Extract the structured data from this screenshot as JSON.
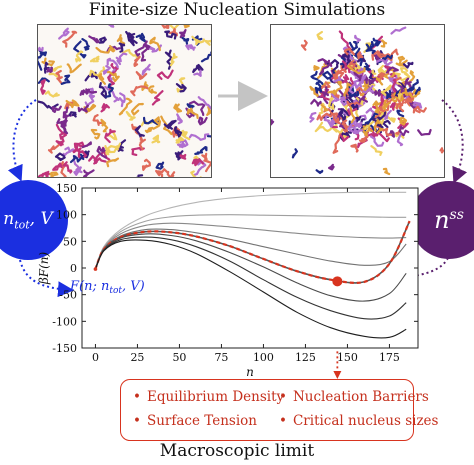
{
  "title": "Finite-size Nucleation Simulations",
  "left_node": {
    "label": "n_{tot}, V",
    "label_main": "n",
    "label_sub": "tot",
    "label_rest": ", V",
    "color": "#1b2fe0"
  },
  "right_node": {
    "label_main": "n",
    "label_sup": "ss",
    "color": "#5a1f6e"
  },
  "curve_label": {
    "prefix": "F(n; n",
    "sub": "tot",
    "suffix": ", V)",
    "color": "#1b2fe0"
  },
  "results": {
    "items": [
      "Equilibrium Density",
      "Nucleation Barriers",
      "Surface Tension",
      "Critical nucleus sizes"
    ],
    "bullet": "•",
    "color": "#d8341f"
  },
  "caption": "Macroscopic limit",
  "chart_data": {
    "type": "line",
    "xlabel": "n",
    "ylabel": "βF(n)",
    "xlim": [
      -8,
      192
    ],
    "ylim": [
      -150,
      150
    ],
    "xticks": [
      0,
      25,
      50,
      75,
      100,
      125,
      150,
      175
    ],
    "yticks": [
      150,
      100,
      50,
      0,
      -50,
      -100,
      -150
    ],
    "grid": false,
    "series": [
      {
        "color": "#b5b5b5",
        "x": [
          0,
          5,
          15,
          30,
          45,
          60,
          80,
          100,
          120,
          140,
          160,
          175,
          185
        ],
        "y": [
          -2,
          40,
          72,
          98,
          113,
          123,
          131,
          136,
          139,
          141,
          142,
          142,
          142
        ]
      },
      {
        "color": "#a0a0a0",
        "x": [
          0,
          5,
          15,
          30,
          45,
          60,
          80,
          100,
          120,
          140,
          160,
          175,
          185
        ],
        "y": [
          -2,
          38,
          68,
          88,
          96,
          99,
          100,
          99,
          98,
          97,
          96,
          95,
          95
        ]
      },
      {
        "color": "#8a8a8a",
        "x": [
          0,
          5,
          15,
          30,
          45,
          60,
          80,
          100,
          120,
          140,
          160,
          175,
          185
        ],
        "y": [
          -2,
          37,
          64,
          80,
          84,
          82,
          77,
          71,
          65,
          60,
          57,
          56,
          57
        ]
      },
      {
        "color": "#737373",
        "x": [
          0,
          5,
          15,
          30,
          45,
          60,
          80,
          100,
          120,
          140,
          160,
          175,
          185
        ],
        "y": [
          -2,
          36,
          60,
          72,
          72,
          66,
          54,
          40,
          26,
          13,
          5,
          12,
          45
        ]
      },
      {
        "color": "#d8341f",
        "dashed": true,
        "x": [
          0,
          5,
          15,
          30,
          45,
          60,
          80,
          100,
          120,
          140,
          160,
          175,
          187
        ],
        "y": [
          -2,
          35,
          58,
          68,
          67,
          59,
          41,
          17,
          -6,
          -22,
          -26,
          8,
          88
        ]
      },
      {
        "color": "#4a4a4a",
        "x": [
          0,
          5,
          15,
          30,
          45,
          60,
          80,
          100,
          120,
          140,
          160,
          175,
          185
        ],
        "y": [
          -2,
          34,
          56,
          64,
          61,
          51,
          29,
          2,
          -28,
          -52,
          -62,
          -48,
          -10
        ]
      },
      {
        "color": "#333333",
        "x": [
          0,
          5,
          15,
          30,
          45,
          60,
          80,
          100,
          120,
          140,
          160,
          175,
          185
        ],
        "y": [
          -2,
          33,
          53,
          58,
          53,
          40,
          13,
          -22,
          -55,
          -80,
          -95,
          -90,
          -65
        ]
      },
      {
        "color": "#1e1e1e",
        "x": [
          0,
          5,
          15,
          30,
          45,
          60,
          80,
          100,
          120,
          140,
          160,
          175,
          185
        ],
        "y": [
          -2,
          32,
          50,
          52,
          44,
          27,
          -7,
          -45,
          -83,
          -112,
          -128,
          -130,
          -115
        ]
      }
    ],
    "highlight_point": {
      "x": 144,
      "y": -25,
      "color": "#d8341f"
    }
  }
}
